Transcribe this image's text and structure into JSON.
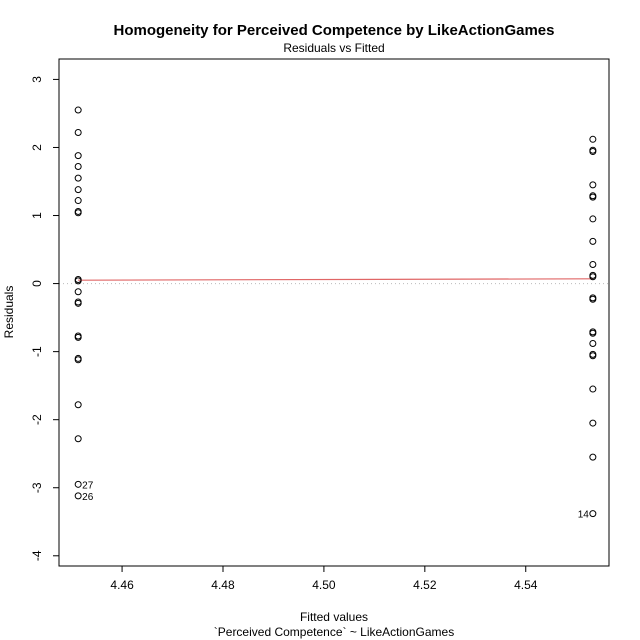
{
  "chart_data": {
    "type": "scatter",
    "title": "Homogeneity for Perceived Competence by LikeActionGames",
    "subtitle": "Residuals vs Fitted",
    "xlabel": "Fitted values",
    "xlabel_sub": "`Perceived Competence` ~ LikeActionGames",
    "ylabel": "Residuals",
    "xlim": [
      4.4475,
      4.5565
    ],
    "ylim": [
      -4.15,
      3.3
    ],
    "x_ticks": [
      4.46,
      4.48,
      4.5,
      4.52,
      4.54
    ],
    "x_tick_labels": [
      "4.46",
      "4.48",
      "4.50",
      "4.52",
      "4.54"
    ],
    "y_ticks": [
      -4,
      -3,
      -2,
      -1,
      0,
      1,
      2,
      3
    ],
    "y_tick_labels": [
      "-4",
      "-3",
      "-2",
      "-1",
      "0",
      "1",
      "2",
      "3"
    ],
    "reference_line": {
      "y": 0,
      "style": "dotted",
      "color": "#bbbbbb"
    },
    "smoother": {
      "x": [
        4.4513,
        4.5533
      ],
      "y": [
        0.05,
        0.07
      ],
      "color": "#e06666"
    },
    "point_color": "#000000",
    "groups": [
      {
        "x": 4.4513,
        "residuals": [
          2.55,
          2.22,
          1.88,
          1.72,
          1.55,
          1.38,
          1.22,
          1.06,
          1.04,
          0.06,
          0.04,
          -0.12,
          -0.27,
          -0.29,
          -0.77,
          -0.79,
          -1.1,
          -1.12,
          -1.78,
          -2.28,
          -2.95,
          -3.12
        ]
      },
      {
        "x": 4.5533,
        "residuals": [
          2.12,
          1.96,
          1.94,
          1.45,
          1.29,
          1.27,
          0.95,
          0.62,
          0.28,
          0.12,
          0.1,
          -0.21,
          -0.23,
          -0.71,
          -0.73,
          -0.88,
          -1.04,
          -1.06,
          -1.55,
          -2.05,
          -2.55,
          -3.38
        ]
      }
    ],
    "labeled_points": [
      {
        "label": "27",
        "x": 4.4513,
        "y": -2.95,
        "side": "right"
      },
      {
        "label": "26",
        "x": 4.4513,
        "y": -3.12,
        "side": "right"
      },
      {
        "label": "14",
        "x": 4.5533,
        "y": -3.38,
        "side": "left"
      }
    ]
  }
}
